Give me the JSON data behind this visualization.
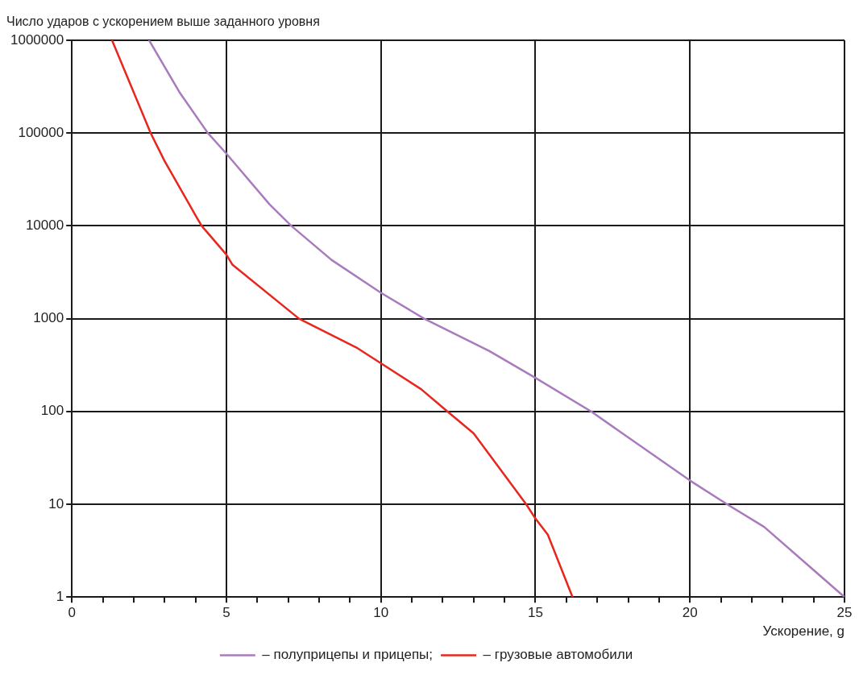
{
  "chart_data": {
    "type": "line",
    "ylabel": "Число ударов с ускорением выше заданного уровня",
    "xlabel": "Ускорение, g",
    "log": "y",
    "grid": true,
    "legend": "bottom",
    "marker": "none",
    "line_style": "solid",
    "xlim": [
      0,
      25
    ],
    "ylim": [
      1,
      1000000
    ],
    "xticks": [
      0,
      {
        "value": 1,
        "label": null
      },
      {
        "value": 2,
        "label": null
      },
      {
        "value": 3,
        "label": null
      },
      {
        "value": 4,
        "label": null
      },
      5,
      {
        "value": 6,
        "label": null
      },
      {
        "value": 7,
        "label": null
      },
      {
        "value": 8,
        "label": null
      },
      {
        "value": 9,
        "label": null
      },
      10,
      {
        "value": 11,
        "label": null
      },
      {
        "value": 12,
        "label": null
      },
      {
        "value": 13,
        "label": null
      },
      {
        "value": 14,
        "label": null
      },
      15,
      {
        "value": 16,
        "label": null
      },
      {
        "value": 17,
        "label": null
      },
      {
        "value": 18,
        "label": null
      },
      {
        "value": 19,
        "label": null
      },
      20,
      {
        "value": 21,
        "label": null
      },
      {
        "value": 22,
        "label": null
      },
      {
        "value": 23,
        "label": null
      },
      {
        "value": 24,
        "label": null
      },
      25
    ],
    "yticks": [
      1,
      10,
      100,
      1000,
      10000,
      100000,
      1000000
    ],
    "series": [
      {
        "name": "– полуприцепы и прицепы;",
        "color": "#a97bbd",
        "x": [
          2.5,
          3.5,
          4.4,
          5,
          6.4,
          7.1,
          8.4,
          10,
          11.4,
          13.5,
          15,
          16.8,
          20,
          21.2,
          22.4,
          25
        ],
        "values": [
          1000000,
          270000,
          100000,
          60000,
          17000,
          10000,
          4300,
          1900,
          1000,
          450,
          230,
          100,
          18,
          10,
          5.7,
          1
        ]
      },
      {
        "name": "– грузовые автомобили",
        "color": "#e8261e",
        "x": [
          1.3,
          2.55,
          3,
          4,
          4.2,
          5,
          5.2,
          7.35,
          9.2,
          10,
          11.3,
          12.15,
          13,
          14.7,
          15,
          15.4,
          16.2
        ],
        "values": [
          1000000,
          100000,
          50000,
          13000,
          10000,
          4900,
          3800,
          1000,
          490,
          330,
          174,
          100,
          58,
          10,
          7,
          4.7,
          1
        ]
      }
    ]
  }
}
